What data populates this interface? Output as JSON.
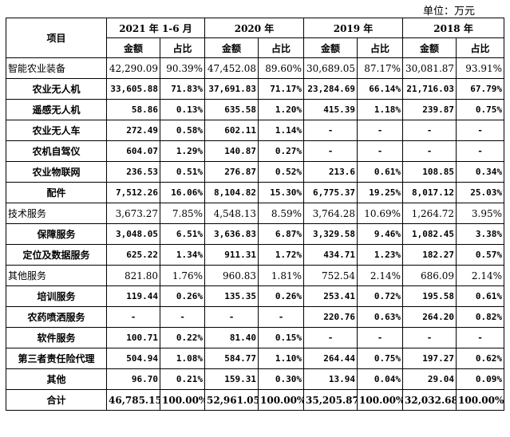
{
  "unit_label": "单位：万元",
  "header": {
    "item": "项目",
    "periods": [
      "2021 年 1-6 月",
      "2020 年",
      "2019 年",
      "2018 年"
    ],
    "amount": "金额",
    "ratio": "占比"
  },
  "rows": [
    {
      "label": "智能农业装备",
      "kind": "cat",
      "cells": [
        "42,290.09",
        "90.39%",
        "47,452.08",
        "89.60%",
        "30,689.05",
        "87.17%",
        "30,081.87",
        "93.91%"
      ]
    },
    {
      "label": "农业无人机",
      "kind": "sub",
      "cells": [
        "33,605.88",
        "71.83%",
        "37,691.83",
        "71.17%",
        "23,284.69",
        "66.14%",
        "21,716.03",
        "67.79%"
      ]
    },
    {
      "label": "遥感无人机",
      "kind": "sub",
      "cells": [
        "58.86",
        "0.13%",
        "635.58",
        "1.20%",
        "415.39",
        "1.18%",
        "239.87",
        "0.75%"
      ]
    },
    {
      "label": "农业无人车",
      "kind": "sub",
      "cells": [
        "272.49",
        "0.58%",
        "602.11",
        "1.14%",
        "-",
        "-",
        "-",
        "-"
      ]
    },
    {
      "label": "农机自驾仪",
      "kind": "sub",
      "cells": [
        "604.07",
        "1.29%",
        "140.87",
        "0.27%",
        "-",
        "-",
        "-",
        "-"
      ]
    },
    {
      "label": "农业物联网",
      "kind": "sub",
      "cells": [
        "236.53",
        "0.51%",
        "276.87",
        "0.52%",
        "213.6",
        "0.61%",
        "108.85",
        "0.34%"
      ]
    },
    {
      "label": "配件",
      "kind": "sub",
      "cells": [
        "7,512.26",
        "16.06%",
        "8,104.82",
        "15.30%",
        "6,775.37",
        "19.25%",
        "8,017.12",
        "25.03%"
      ]
    },
    {
      "label": "技术服务",
      "kind": "cat",
      "cells": [
        "3,673.27",
        "7.85%",
        "4,548.13",
        "8.59%",
        "3,764.28",
        "10.69%",
        "1,264.72",
        "3.95%"
      ]
    },
    {
      "label": "保障服务",
      "kind": "sub",
      "cells": [
        "3,048.05",
        "6.51%",
        "3,636.83",
        "6.87%",
        "3,329.58",
        "9.46%",
        "1,082.45",
        "3.38%"
      ]
    },
    {
      "label": "定位及数据服务",
      "kind": "sub",
      "cells": [
        "625.22",
        "1.34%",
        "911.31",
        "1.72%",
        "434.71",
        "1.23%",
        "182.27",
        "0.57%"
      ]
    },
    {
      "label": "其他服务",
      "kind": "cat",
      "cells": [
        "821.80",
        "1.76%",
        "960.83",
        "1.81%",
        "752.54",
        "2.14%",
        "686.09",
        "2.14%"
      ]
    },
    {
      "label": "培训服务",
      "kind": "sub",
      "cells": [
        "119.44",
        "0.26%",
        "135.35",
        "0.26%",
        "253.41",
        "0.72%",
        "195.58",
        "0.61%"
      ]
    },
    {
      "label": "农药喷洒服务",
      "kind": "sub",
      "cells": [
        "-",
        "-",
        "-",
        "-",
        "220.76",
        "0.63%",
        "264.20",
        "0.82%"
      ]
    },
    {
      "label": "软件服务",
      "kind": "sub",
      "cells": [
        "100.71",
        "0.22%",
        "81.40",
        "0.15%",
        "-",
        "-",
        "-",
        "-"
      ]
    },
    {
      "label": "第三者责任险代理",
      "kind": "sub",
      "cells": [
        "504.94",
        "1.08%",
        "584.77",
        "1.10%",
        "264.44",
        "0.75%",
        "197.27",
        "0.62%"
      ]
    },
    {
      "label": "其他",
      "kind": "sub",
      "cells": [
        "96.70",
        "0.21%",
        "159.31",
        "0.30%",
        "13.94",
        "0.04%",
        "29.04",
        "0.09%"
      ]
    },
    {
      "label": "合计",
      "kind": "total",
      "cells": [
        "46,785.15",
        "100.00%",
        "52,961.05",
        "100.00%",
        "35,205.87",
        "100.00%",
        "32,032.68",
        "100.00%"
      ]
    }
  ]
}
